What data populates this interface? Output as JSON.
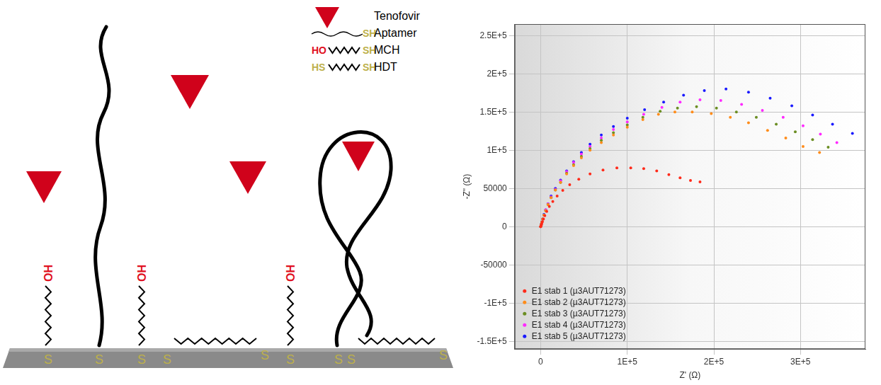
{
  "diagram": {
    "legend": [
      {
        "label": "Tenofovir"
      },
      {
        "label": "Aptamer",
        "right": "SH"
      },
      {
        "label": "MCH",
        "left": "HO",
        "right": "SH"
      },
      {
        "label": "HDT",
        "left": "HS",
        "right": "SH"
      }
    ],
    "surface": {
      "anchor_label": "S",
      "head_label": "OH",
      "layer": [
        {
          "label": "MCH"
        },
        {
          "label": "Aptamer",
          "bound": false
        },
        {
          "label": "MCH"
        },
        {
          "label": "HDT"
        },
        {
          "label": "MCH"
        },
        {
          "label": "Aptamer",
          "bound": true
        },
        {
          "label": "HDT"
        }
      ]
    }
  },
  "chart_data": {
    "type": "scatter",
    "x_label": "Z' (Ω)",
    "y_label": "-Z\" (Ω)",
    "xlim": [
      -30000,
      375000
    ],
    "xticks": [
      0,
      {
        "value": 100000,
        "label": "1E+5"
      },
      {
        "value": 200000,
        "label": "2E+5"
      },
      {
        "value": 300000,
        "label": "3E+5"
      }
    ],
    "ylim": [
      -160000,
      265000
    ],
    "yticks": [
      {
        "value": -150000,
        "label": "-1.5E+5"
      },
      {
        "value": -100000,
        "label": "-1E+5"
      },
      -50000,
      0,
      50000,
      {
        "value": 100000,
        "label": "1E+5"
      },
      {
        "value": 150000,
        "label": "1.5E+5"
      },
      {
        "value": 200000,
        "label": "2E+5"
      },
      {
        "value": 250000,
        "label": "2.5E+5"
      }
    ],
    "grid": true,
    "legend": "lower left",
    "series": [
      {
        "name": "E1 stab 1 (µ3AUT71273)",
        "color": "#ff2a1a",
        "marker": "circle",
        "x": [
          0,
          600,
          1200,
          2000,
          3200,
          4800,
          7000,
          10000,
          14000,
          19000,
          25500,
          33500,
          44000,
          57000,
          72000,
          88000,
          104000,
          119000,
          134000,
          148000,
          161000,
          173000,
          184000
        ],
        "values": [
          0,
          2000,
          4000,
          6500,
          10000,
          14500,
          20000,
          26500,
          33000,
          40000,
          47500,
          55000,
          62000,
          69000,
          74000,
          77000,
          77000,
          76000,
          73000,
          68000,
          64000,
          60500,
          58500
        ]
      },
      {
        "name": "E1 stab 2 (µ3AUT71273)",
        "color": "#ff8c1a",
        "marker": "circle",
        "x": [
          0,
          700,
          1400,
          2400,
          3800,
          5800,
          8500,
          12000,
          17000,
          23000,
          30000,
          38000,
          47000,
          57000,
          70000,
          84000,
          100000,
          118000,
          136000,
          155000,
          175000,
          197000,
          219000,
          240000,
          262000,
          283000,
          303000,
          322000
        ],
        "values": [
          0,
          3000,
          6000,
          10000,
          15000,
          21000,
          29000,
          38000,
          48000,
          58000,
          69000,
          80000,
          90000,
          100000,
          110000,
          120000,
          130000,
          140000,
          147000,
          150000,
          150000,
          148000,
          143000,
          136000,
          126000,
          116000,
          105000,
          97000
        ]
      },
      {
        "name": "E1 stab 3 (µ3AUT71273)",
        "color": "#6b8e23",
        "marker": "circle",
        "x": [
          0,
          700,
          1400,
          2400,
          3800,
          5800,
          8500,
          12000,
          17000,
          23000,
          30000,
          38000,
          47000,
          57000,
          70000,
          84000,
          100000,
          118000,
          138000,
          158000,
          180000,
          203000,
          226000,
          249000,
          272000,
          294000,
          314000,
          332000
        ],
        "values": [
          0,
          3000,
          6000,
          10000,
          15000,
          21000,
          29000,
          38000,
          48000,
          58000,
          70000,
          81000,
          92000,
          102000,
          113000,
          123000,
          133000,
          143000,
          151000,
          155000,
          157000,
          155000,
          150000,
          143000,
          134000,
          124000,
          114000,
          104000
        ]
      },
      {
        "name": "E1 stab 4 (µ3AUT71273)",
        "color": "#ff2aff",
        "marker": "circle",
        "x": [
          0,
          700,
          1400,
          2400,
          3800,
          5800,
          8500,
          12000,
          17000,
          23000,
          30000,
          38000,
          47000,
          57000,
          70000,
          84000,
          100000,
          119000,
          140000,
          161000,
          184000,
          208000,
          232000,
          256000,
          280000,
          303000,
          323000,
          342000
        ],
        "values": [
          0,
          3000,
          6000,
          10000,
          15000,
          22000,
          30000,
          39000,
          49000,
          60000,
          72000,
          84000,
          95000,
          105000,
          116000,
          127000,
          137000,
          147000,
          156000,
          163000,
          166000,
          165000,
          160000,
          152000,
          143000,
          132000,
          121000,
          110000
        ]
      },
      {
        "name": "E1 stab 5 (µ3AUT71273)",
        "color": "#1a1aff",
        "marker": "circle",
        "x": [
          0,
          700,
          1400,
          2400,
          3800,
          5800,
          8500,
          12000,
          17000,
          23000,
          30000,
          38000,
          47000,
          57000,
          70000,
          84000,
          100000,
          120000,
          142000,
          165000,
          189000,
          214000,
          240000,
          265000,
          290000,
          314000,
          337000,
          360000
        ],
        "values": [
          0,
          3000,
          6000,
          10000,
          16000,
          22000,
          30000,
          40000,
          50000,
          61000,
          73000,
          85000,
          97000,
          108000,
          120000,
          131000,
          142000,
          153000,
          163000,
          172000,
          178000,
          180000,
          176000,
          168000,
          158000,
          146000,
          134000,
          122000
        ]
      }
    ]
  }
}
